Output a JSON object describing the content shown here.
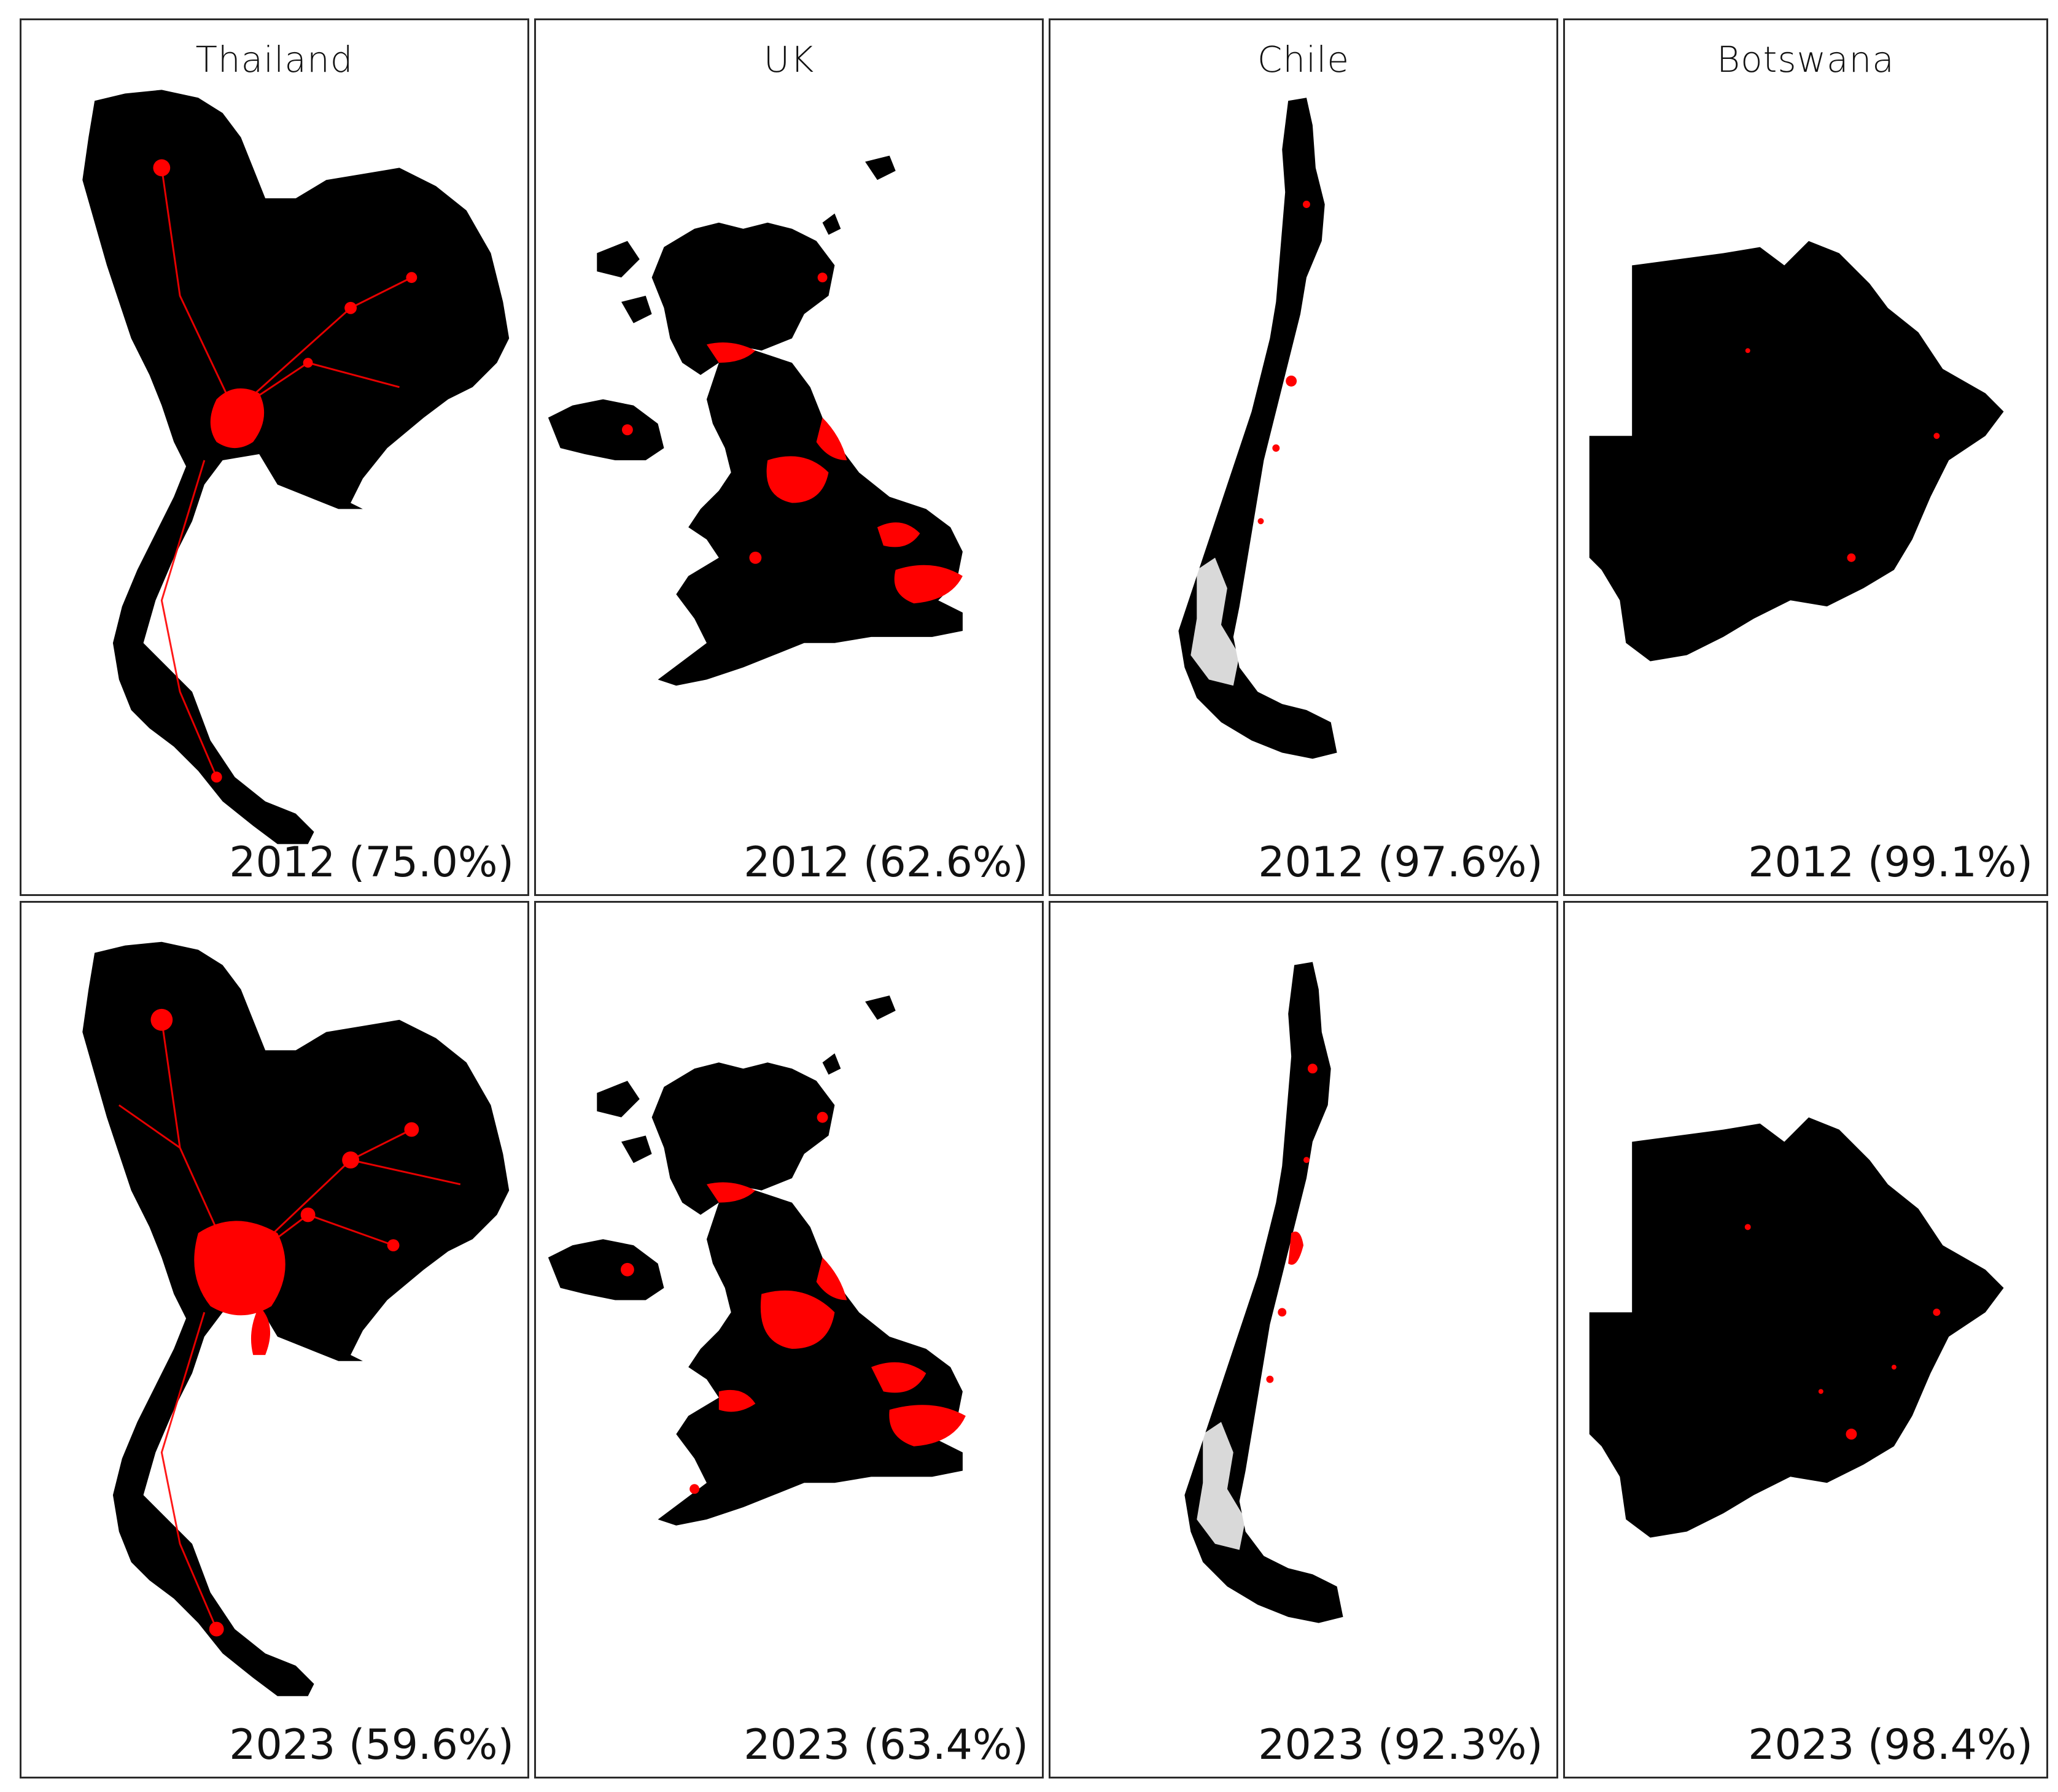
{
  "colors": {
    "land": "#000000",
    "built_up": "#ff0000",
    "background": "#ffffff",
    "frame": "#2b2b2b"
  },
  "columns": [
    {
      "country": "Thailand",
      "panels": [
        {
          "label": "2012 (75.0%)"
        },
        {
          "label": "2023 (59.6%)"
        }
      ]
    },
    {
      "country": "UK",
      "panels": [
        {
          "label": "2012 (62.6%)"
        },
        {
          "label": "2023 (63.4%)"
        }
      ]
    },
    {
      "country": "Chile",
      "panels": [
        {
          "label": "2012 (97.6%)"
        },
        {
          "label": "2023 (92.3%)"
        }
      ]
    },
    {
      "country": "Botswana",
      "panels": [
        {
          "label": "2012 (99.1%)"
        },
        {
          "label": "2023 (98.4%)"
        }
      ]
    }
  ]
}
